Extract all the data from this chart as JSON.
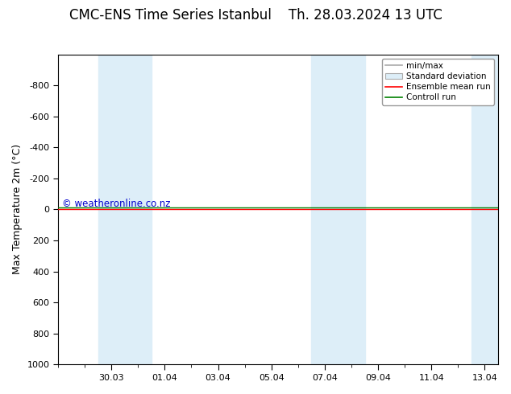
{
  "title_left": "CMC-ENS Time Series Istanbul",
  "title_right": "Th. 28.03.2024 13 UTC",
  "ylabel": "Max Temperature 2m (°C)",
  "ylim": [
    -1000,
    1000
  ],
  "yticks": [
    -800,
    -600,
    -400,
    -200,
    0,
    200,
    400,
    600,
    800,
    1000
  ],
  "xtick_labels": [
    "30.03",
    "01.04",
    "03.04",
    "05.04",
    "07.04",
    "09.04",
    "11.04",
    "13.04"
  ],
  "shaded_color": "#ddeef8",
  "background_color": "#ffffff",
  "plot_bg_color": "#ffffff",
  "ensemble_mean_color": "#ff0000",
  "control_run_color": "#008000",
  "watermark_text": "© weatheronline.co.nz",
  "watermark_color": "#0000cc",
  "legend_labels": [
    "min/max",
    "Standard deviation",
    "Ensemble mean run",
    "Controll run"
  ],
  "title_fontsize": 12,
  "tick_fontsize": 8,
  "ylabel_fontsize": 9
}
